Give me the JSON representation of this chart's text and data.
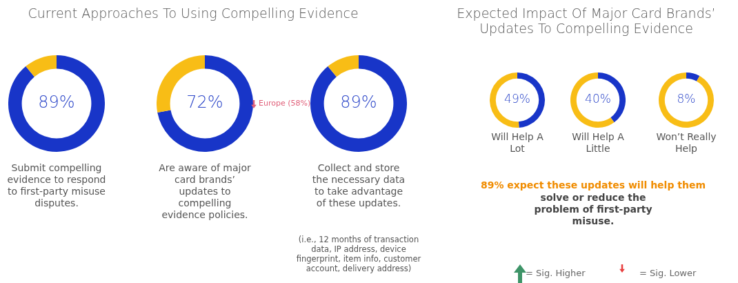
{
  "chart_data": [
    {
      "type": "donut",
      "title": "Current Approaches To Using Compelling Evidence",
      "categories": [
        null,
        null
      ],
      "values": [
        89,
        11
      ],
      "colors": [
        "#1835c8",
        "#f8bd16"
      ],
      "value_labels": [
        "89%",
        null
      ],
      "annotations": [
        "Submit compelling evidence to respond to first-party misuse disputes."
      ]
    },
    {
      "type": "donut",
      "categories": [
        null,
        null
      ],
      "values": [
        72,
        28
      ],
      "colors": [
        "#1835c8",
        "#f8bd16"
      ],
      "value_labels": [
        "72%",
        null
      ],
      "annotations": [
        "Are aware of major card brands’ updates to compelling evidence policies.",
        "Europe (58%)"
      ]
    },
    {
      "type": "donut",
      "categories": [
        null,
        null
      ],
      "values": [
        89,
        11
      ],
      "colors": [
        "#1835c8",
        "#f8bd16"
      ],
      "value_labels": [
        "89%",
        null
      ],
      "annotations": [
        "Collect and store the necessary data to take advantage of these updates.",
        "(i.e., 12 months of transaction data, IP address, device fingerprint, item info, customer account, delivery address)"
      ]
    },
    {
      "type": "donut",
      "title": "Expected Impact Of Major Card Brands’ Updates To Compelling Evidence",
      "categories": [
        null,
        null
      ],
      "values": [
        49,
        51
      ],
      "colors": [
        "#1835c8",
        "#f8bd16"
      ],
      "value_labels": [
        "49%",
        null
      ],
      "annotations": [
        "Will Help A Lot"
      ]
    },
    {
      "type": "donut",
      "categories": [
        null,
        null
      ],
      "values": [
        40,
        60
      ],
      "colors": [
        "#1835c8",
        "#f8bd16"
      ],
      "value_labels": [
        "40%",
        null
      ],
      "annotations": [
        "Will Help A Little"
      ]
    },
    {
      "type": "donut",
      "categories": [
        null,
        null
      ],
      "values": [
        8,
        92
      ],
      "colors": [
        "#1835c8",
        "#f8bd16"
      ],
      "value_labels": [
        "8%",
        null
      ],
      "annotations": [
        "Won’t Really Help"
      ]
    },
    {
      "type": "other",
      "annotations": [
        "89% expect these updates will help them",
        "solve or reduce the problem of first-party misuse.",
        "= Sig. Higher",
        "= Sig. Lower"
      ]
    }
  ]
}
